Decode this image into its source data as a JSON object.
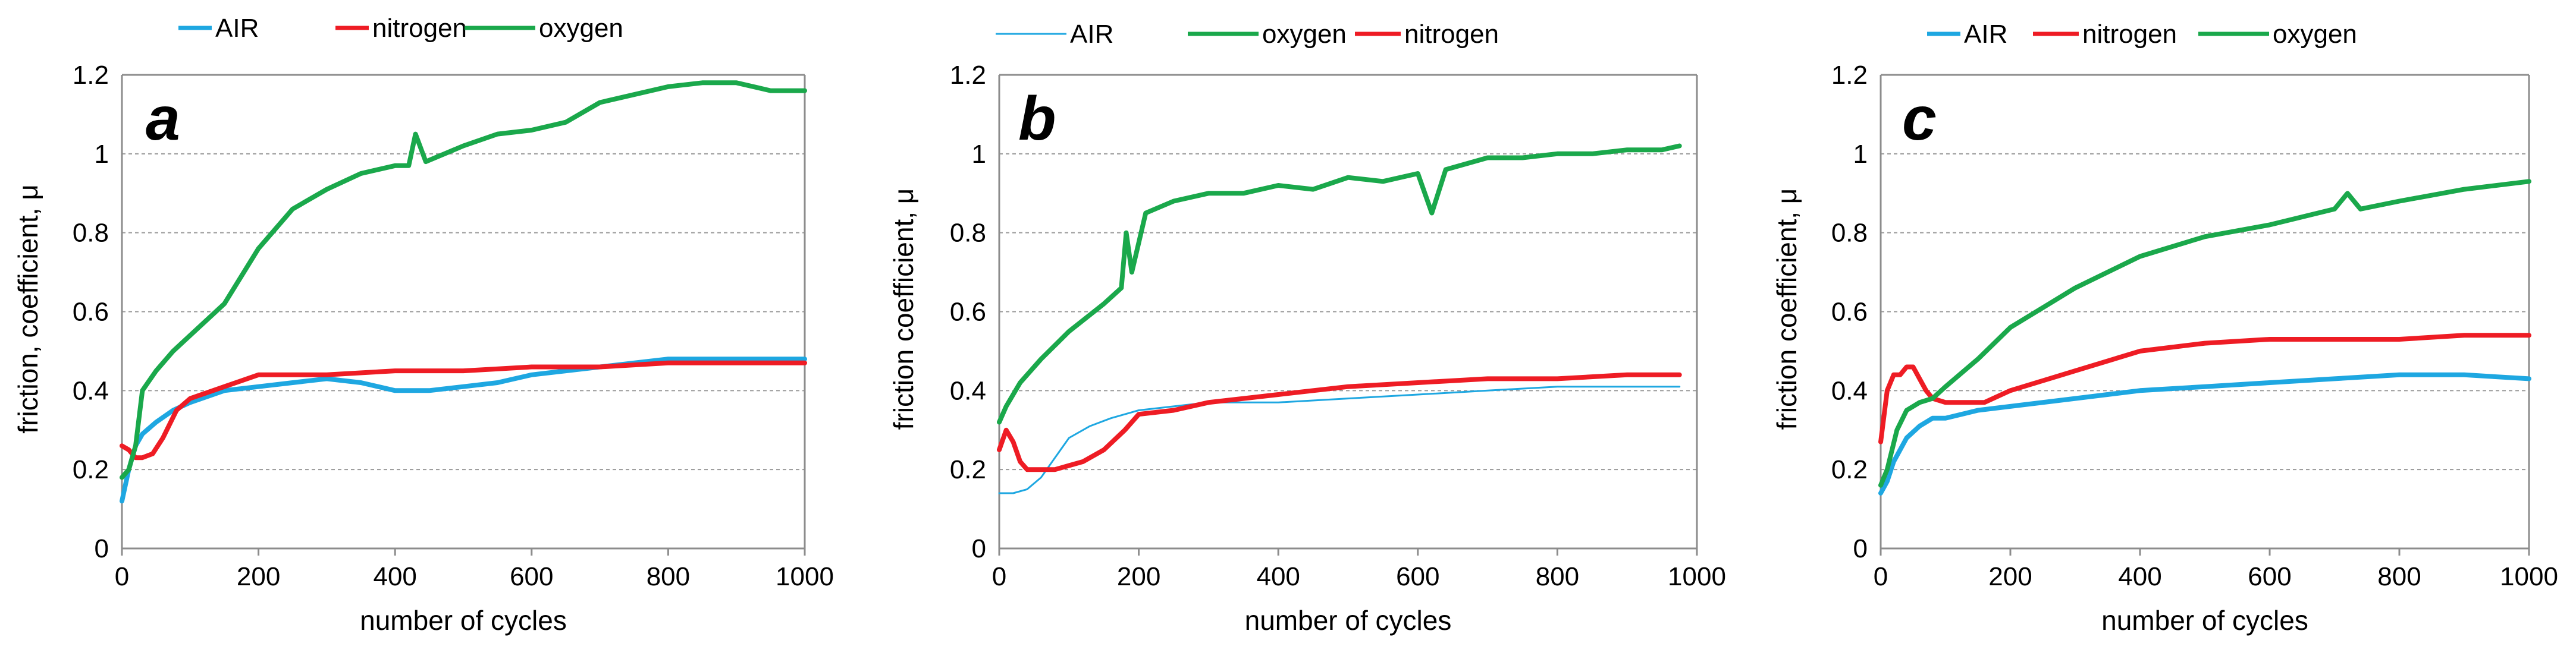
{
  "chart_data": [
    {
      "type": "line",
      "panel_label": "a",
      "xlabel": "number of cycles",
      "ylabel": "friction, coefficient, μ",
      "xlim": [
        0,
        1000
      ],
      "ylim": [
        0,
        1.2
      ],
      "x_ticks": [
        "0",
        "200",
        "400",
        "600",
        "800",
        "1000"
      ],
      "y_ticks": [
        "0",
        "0.2",
        "0.4",
        "0.6",
        "0.8",
        "1",
        "1.2"
      ],
      "grid": "horizontal dashed",
      "legend": [
        "AIR",
        "nitrogen",
        "oxygen"
      ],
      "series": [
        {
          "name": "AIR",
          "color": "#1ea7e1",
          "x": [
            0,
            10,
            20,
            30,
            50,
            75,
            100,
            150,
            200,
            250,
            300,
            350,
            400,
            450,
            500,
            550,
            600,
            650,
            700,
            750,
            800,
            850,
            900,
            950,
            1000
          ],
          "y": [
            0.12,
            0.2,
            0.26,
            0.29,
            0.32,
            0.35,
            0.37,
            0.4,
            0.41,
            0.42,
            0.43,
            0.42,
            0.4,
            0.4,
            0.41,
            0.42,
            0.44,
            0.45,
            0.46,
            0.47,
            0.48,
            0.48,
            0.48,
            0.48,
            0.48
          ]
        },
        {
          "name": "nitrogen",
          "color": "#ee1c24",
          "x": [
            0,
            10,
            20,
            30,
            45,
            60,
            80,
            100,
            150,
            200,
            300,
            400,
            500,
            600,
            700,
            800,
            900,
            1000
          ],
          "y": [
            0.26,
            0.25,
            0.23,
            0.23,
            0.24,
            0.28,
            0.35,
            0.38,
            0.41,
            0.44,
            0.44,
            0.45,
            0.45,
            0.46,
            0.46,
            0.47,
            0.47,
            0.47
          ]
        },
        {
          "name": "oxygen",
          "color": "#1aa84b",
          "x": [
            0,
            10,
            20,
            30,
            50,
            75,
            100,
            150,
            200,
            250,
            300,
            350,
            400,
            420,
            430,
            445,
            500,
            550,
            600,
            650,
            700,
            750,
            800,
            850,
            900,
            950,
            1000
          ],
          "y": [
            0.18,
            0.2,
            0.26,
            0.4,
            0.45,
            0.5,
            0.54,
            0.62,
            0.76,
            0.86,
            0.91,
            0.95,
            0.97,
            0.97,
            1.05,
            0.98,
            1.02,
            1.05,
            1.06,
            1.08,
            1.13,
            1.15,
            1.17,
            1.18,
            1.18,
            1.16,
            1.16
          ]
        }
      ]
    },
    {
      "type": "line",
      "panel_label": "b",
      "xlabel": "number of cycles",
      "ylabel": "friction coefficient, μ",
      "xlim": [
        0,
        1000
      ],
      "ylim": [
        0,
        1.2
      ],
      "x_ticks": [
        "0",
        "200",
        "400",
        "600",
        "800",
        "1000"
      ],
      "y_ticks": [
        "0",
        "0.2",
        "0.4",
        "0.6",
        "0.8",
        "1",
        "1.2"
      ],
      "grid": "horizontal dashed",
      "legend": [
        "AIR",
        "oxygen",
        "nitrogen"
      ],
      "series": [
        {
          "name": "AIR",
          "color": "#1ea7e1",
          "x": [
            0,
            20,
            40,
            60,
            80,
            100,
            130,
            160,
            200,
            250,
            300,
            400,
            500,
            600,
            700,
            800,
            900,
            975
          ],
          "y": [
            0.14,
            0.14,
            0.15,
            0.18,
            0.23,
            0.28,
            0.31,
            0.33,
            0.35,
            0.36,
            0.37,
            0.37,
            0.38,
            0.39,
            0.4,
            0.41,
            0.41,
            0.41
          ]
        },
        {
          "name": "nitrogen",
          "color": "#ee1c24",
          "x": [
            0,
            10,
            20,
            30,
            40,
            60,
            80,
            100,
            120,
            150,
            180,
            200,
            250,
            300,
            400,
            500,
            600,
            700,
            800,
            900,
            975
          ],
          "y": [
            0.25,
            0.3,
            0.27,
            0.22,
            0.2,
            0.2,
            0.2,
            0.21,
            0.22,
            0.25,
            0.3,
            0.34,
            0.35,
            0.37,
            0.39,
            0.41,
            0.42,
            0.43,
            0.43,
            0.44,
            0.44
          ]
        },
        {
          "name": "oxygen",
          "color": "#1aa84b",
          "x": [
            0,
            10,
            30,
            60,
            100,
            150,
            175,
            182,
            190,
            210,
            250,
            300,
            350,
            400,
            450,
            500,
            550,
            600,
            620,
            640,
            700,
            750,
            800,
            850,
            900,
            950,
            975
          ],
          "y": [
            0.32,
            0.36,
            0.42,
            0.48,
            0.55,
            0.62,
            0.66,
            0.8,
            0.7,
            0.85,
            0.88,
            0.9,
            0.9,
            0.92,
            0.91,
            0.94,
            0.93,
            0.95,
            0.85,
            0.96,
            0.99,
            0.99,
            1.0,
            1.0,
            1.01,
            1.01,
            1.02
          ]
        }
      ]
    },
    {
      "type": "line",
      "panel_label": "c",
      "xlabel": "number of cycles",
      "ylabel": "friction coefficient, μ",
      "xlim": [
        0,
        1000
      ],
      "ylim": [
        0,
        1.2
      ],
      "x_ticks": [
        "0",
        "200",
        "400",
        "600",
        "800",
        "1000"
      ],
      "y_ticks": [
        "0",
        "0.2",
        "0.4",
        "0.6",
        "0.8",
        "1",
        "1.2"
      ],
      "grid": "horizontal dashed",
      "legend": [
        "AIR",
        "nitrogen",
        "oxygen"
      ],
      "series": [
        {
          "name": "AIR",
          "color": "#1ea7e1",
          "x": [
            0,
            10,
            20,
            40,
            60,
            80,
            100,
            150,
            200,
            300,
            400,
            500,
            600,
            700,
            800,
            900,
            1000
          ],
          "y": [
            0.14,
            0.17,
            0.22,
            0.28,
            0.31,
            0.33,
            0.33,
            0.35,
            0.36,
            0.38,
            0.4,
            0.41,
            0.42,
            0.43,
            0.44,
            0.44,
            0.43
          ]
        },
        {
          "name": "nitrogen",
          "color": "#ee1c24",
          "x": [
            0,
            10,
            20,
            30,
            40,
            50,
            60,
            70,
            80,
            100,
            130,
            160,
            200,
            300,
            400,
            500,
            600,
            700,
            800,
            900,
            1000
          ],
          "y": [
            0.27,
            0.4,
            0.44,
            0.44,
            0.46,
            0.46,
            0.43,
            0.4,
            0.38,
            0.37,
            0.37,
            0.37,
            0.4,
            0.45,
            0.5,
            0.52,
            0.53,
            0.53,
            0.53,
            0.54,
            0.54
          ]
        },
        {
          "name": "oxygen",
          "color": "#1aa84b",
          "x": [
            0,
            10,
            25,
            40,
            60,
            80,
            100,
            150,
            200,
            300,
            400,
            500,
            600,
            700,
            720,
            740,
            800,
            900,
            1000
          ],
          "y": [
            0.16,
            0.2,
            0.3,
            0.35,
            0.37,
            0.38,
            0.41,
            0.48,
            0.56,
            0.66,
            0.74,
            0.79,
            0.82,
            0.86,
            0.9,
            0.86,
            0.88,
            0.91,
            0.93
          ]
        }
      ]
    }
  ]
}
